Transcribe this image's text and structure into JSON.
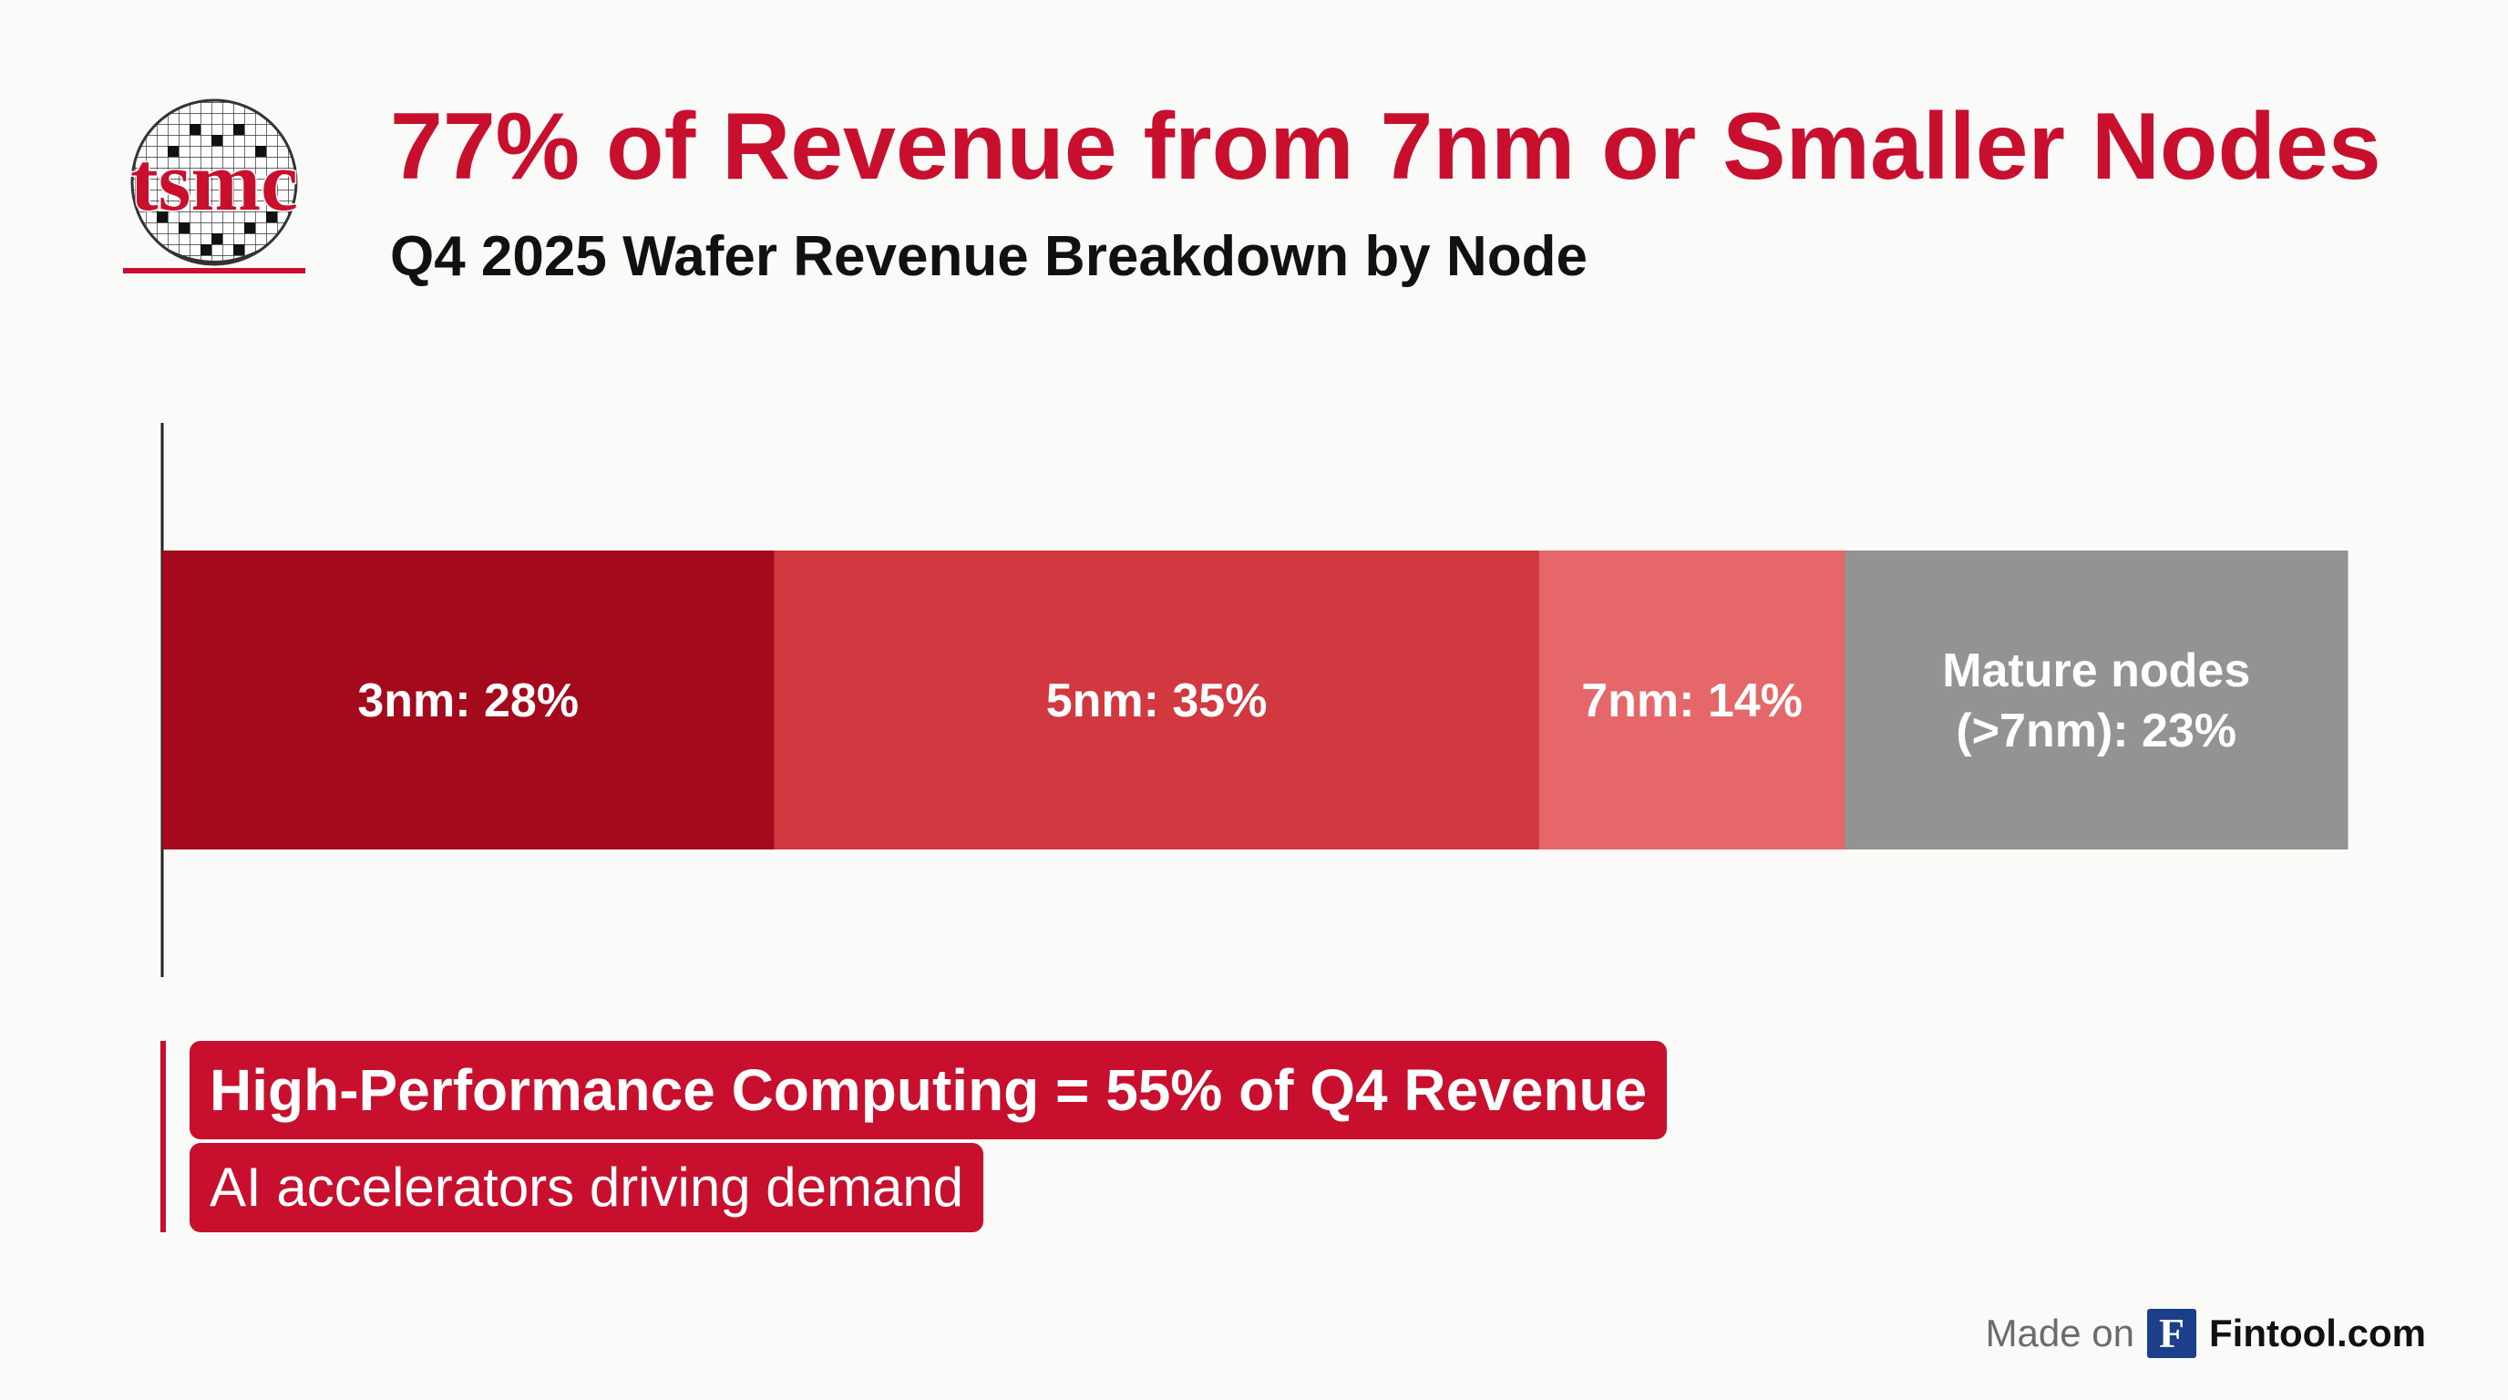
{
  "logo": {
    "text": "tsmc"
  },
  "header": {
    "title": "77% of Revenue from 7nm or Smaller Nodes",
    "subtitle": "Q4 2025 Wafer Revenue Breakdown by Node"
  },
  "chart_data": {
    "type": "bar",
    "orientation": "horizontal",
    "stacked": true,
    "title": "Q4 2025 Wafer Revenue Breakdown by Node",
    "unit": "%",
    "xlim": [
      0,
      100
    ],
    "grid": false,
    "legend": "none",
    "series": [
      {
        "name": "3nm",
        "value": 28,
        "label": "3nm: 28%",
        "color": "#a50a1c"
      },
      {
        "name": "5nm",
        "value": 35,
        "label": "5nm: 35%",
        "color": "#d2383f"
      },
      {
        "name": "7nm",
        "value": 14,
        "label": "7nm: 14%",
        "color": "#e5676a"
      },
      {
        "name": "Mature nodes (>7nm)",
        "value": 23,
        "label_lines": [
          "Mature nodes",
          "(>7nm): 23%"
        ],
        "color": "#939393"
      }
    ]
  },
  "callout": {
    "headline": "High-Performance Computing = 55% of Q4 Revenue",
    "subtext": "AI accelerators driving demand",
    "color": "#c8102e"
  },
  "footer": {
    "made_on": "Made on",
    "icon_letter": "F",
    "brand": "Fintool.com"
  }
}
